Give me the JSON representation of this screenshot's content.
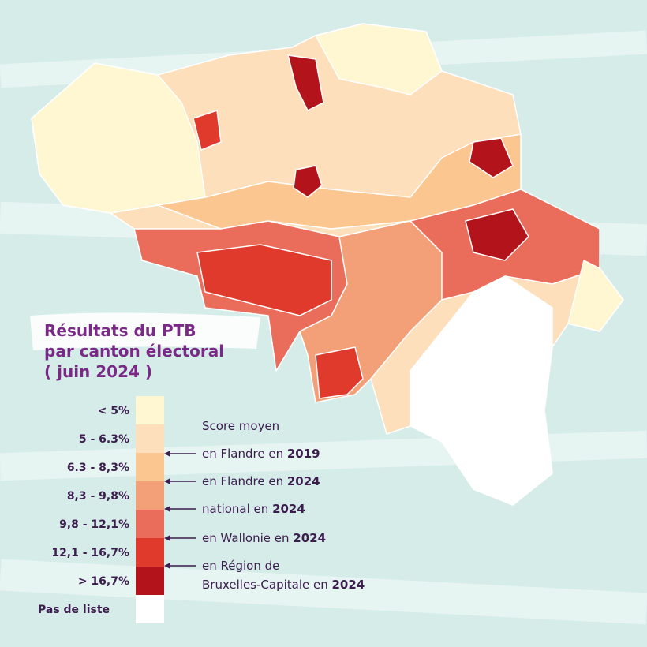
{
  "title": {
    "lines": [
      "Résultats du PTB",
      "par canton électoral",
      "( juin 2024 )"
    ]
  },
  "legend": {
    "items": [
      {
        "label": "< 5%",
        "color": "#fff6d2"
      },
      {
        "label": "5 - 6.3%",
        "color": "#fde0bb"
      },
      {
        "label": "6.3 - 8,3%",
        "color": "#fbc690"
      },
      {
        "label": "8,3  - 9,8%",
        "color": "#f3a078"
      },
      {
        "label": "9,8 - 12,1%",
        "color": "#ea6d5b"
      },
      {
        "label": "12,1 - 16,7%",
        "color": "#df3a2c"
      },
      {
        "label": "> 16,7%",
        "color": "#b3141c"
      },
      {
        "label": "Pas de liste",
        "color": "#ffffff"
      }
    ]
  },
  "annotations": {
    "heading": "Score moyen",
    "items": [
      {
        "text": "en Flandre en ",
        "bold": "2019"
      },
      {
        "text": "en Flandre en ",
        "bold": "2024"
      },
      {
        "text": "national en ",
        "bold": "2024"
      },
      {
        "text": "en Wallonie en ",
        "bold": "2024"
      },
      {
        "text": "en Région de",
        "text2": "Bruxelles-Capitale en ",
        "bold": "2024"
      }
    ]
  }
}
